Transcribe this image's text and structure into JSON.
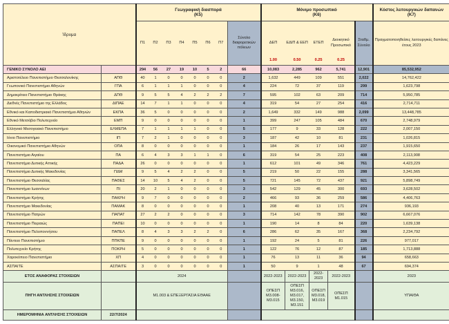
{
  "header": {
    "institution": "Ίδρυμα",
    "geo_title": "Γεωγραφική διασπορά",
    "geo_code": "(Κ5)",
    "staff_title": "Μόνιμο προσωπικό",
    "staff_code": "(Κ6)",
    "cost_title": "Κόστος λειτουργικών δαπανών",
    "cost_code": "(Κ7)",
    "cols_p": [
      "Π1",
      "Π2",
      "Π3",
      "Π4",
      "Π5",
      "Π6",
      "Π7"
    ],
    "total_cities": "Σύνολο διαφορετικών πόλεων",
    "dep": "ΔΕΠ",
    "edip": "ΕΔΙΠ & ΕΕΠ",
    "etep": "ΕΤΕΠ",
    "admin": "Διοικητικό Προσωπικό",
    "weighted": "Σταθμ. Σύνολο",
    "cost_col": "Πραγματοποιηθείσες λειτουργικές δαπάνες έτους 2023",
    "weights": [
      "1.00",
      "0.50",
      "0.25",
      "0.25"
    ]
  },
  "total": {
    "label": "ΓΕΝΙΚΟ ΣΥΝΟΛΟ ΑΕΙ",
    "p": [
      "294",
      "56",
      "27",
      "19",
      "10",
      "5",
      "2"
    ],
    "cities": "66",
    "staff": [
      "10,083",
      "2,285",
      "962",
      "5,741"
    ],
    "weighted": "12,901",
    "cost": "85,532,952"
  },
  "rows": [
    {
      "name": "Αριστοτέλειο Πανεπιστήμιο Θεσσαλονίκης",
      "abbr": "ΑΠΘ",
      "p": [
        "40",
        "1",
        "0",
        "0",
        "0",
        "0",
        "0"
      ],
      "cities": "2",
      "staff": [
        "1,632",
        "449",
        "109",
        "551"
      ],
      "weighted": "2,022",
      "cost": "14,762,422"
    },
    {
      "name": "Γεωπονικό Πανεπιστήμιο Αθηνών",
      "abbr": "ΓΠΑ",
      "p": [
        "6",
        "1",
        "1",
        "1",
        "0",
        "0",
        "0"
      ],
      "cities": "4",
      "staff": [
        "224",
        "72",
        "37",
        "119"
      ],
      "weighted": "299",
      "cost": "1,623,798"
    },
    {
      "name": "Δημοκρίτειο Πανεπιστήμιο Θράκης",
      "abbr": "ΔΠΘ",
      "p": [
        "9",
        "5",
        "5",
        "4",
        "2",
        "2",
        "2"
      ],
      "cities": "7",
      "staff": [
        "595",
        "102",
        "63",
        "209"
      ],
      "weighted": "714",
      "cost": "5,950,785"
    },
    {
      "name": "Διεθνές Πανεπιστήμιο της Ελλάδος",
      "abbr": "ΔΙΠΑΕ",
      "p": [
        "14",
        "7",
        "1",
        "1",
        "0",
        "0",
        "0"
      ],
      "cities": "4",
      "staff": [
        "319",
        "54",
        "27",
        "254"
      ],
      "weighted": "416",
      "cost": "2,714,711"
    },
    {
      "name": "Εθνικό και Καποδιστριακό Πανεπιστήμιο Αθηνών",
      "abbr": "ΕΚΠΑ",
      "p": [
        "36",
        "5",
        "0",
        "0",
        "0",
        "0",
        "0"
      ],
      "cities": "2",
      "staff": [
        "1,649",
        "332",
        "149",
        "988"
      ],
      "weighted": "2,099",
      "cost": "13,448,785"
    },
    {
      "name": "Εθνικό Μετσόβιο Πολυτεχνείο",
      "abbr": "ΕΜΠ",
      "p": [
        "9",
        "0",
        "0",
        "0",
        "0",
        "0",
        "0"
      ],
      "cities": "1",
      "staff": [
        "399",
        "247",
        "105",
        "484"
      ],
      "weighted": "670",
      "cost": "2,748,979"
    },
    {
      "name": "Ελληνικό Μεσογειακό Πανεπιστήμιο",
      "abbr": "ΕΛΜΕΠΑ",
      "p": [
        "7",
        "1",
        "1",
        "1",
        "1",
        "0",
        "0"
      ],
      "cities": "5",
      "staff": [
        "177",
        "9",
        "33",
        "128"
      ],
      "weighted": "222",
      "cost": "2,007,150"
    },
    {
      "name": "Ιόνιο Πανεπιστήμιο",
      "abbr": "ΙΠ",
      "p": [
        "7",
        "2",
        "1",
        "0",
        "0",
        "0",
        "0"
      ],
      "cities": "3",
      "staff": [
        "187",
        "42",
        "10",
        "81"
      ],
      "weighted": "231",
      "cost": "1,026,815"
    },
    {
      "name": "Οικονομικό Πανεπιστήμιο Αθηνών",
      "abbr": "ΟΠΑ",
      "p": [
        "8",
        "0",
        "0",
        "0",
        "0",
        "0",
        "0"
      ],
      "cities": "1",
      "staff": [
        "184",
        "26",
        "17",
        "143"
      ],
      "weighted": "237",
      "cost": "1,915,650"
    },
    {
      "name": "Πανεπιστήμιο Αιγαίου",
      "abbr": "ΠΑ",
      "p": [
        "6",
        "4",
        "3",
        "3",
        "1",
        "1",
        "0"
      ],
      "cities": "6",
      "staff": [
        "319",
        "54",
        "25",
        "223"
      ],
      "weighted": "408",
      "cost": "2,113,908"
    },
    {
      "name": "Πανεπιστήμιο Δυτικής Αττικής",
      "abbr": "ΠΑΔΑ",
      "p": [
        "26",
        "0",
        "0",
        "0",
        "0",
        "0",
        "0"
      ],
      "cities": "1",
      "staff": [
        "612",
        "101",
        "49",
        "346"
      ],
      "weighted": "761",
      "cost": "4,423,229"
    },
    {
      "name": "Πανεπιστήμιο Δυτικής Μακεδονίας",
      "abbr": "ΠΔΜ",
      "p": [
        "9",
        "5",
        "4",
        "2",
        "2",
        "0",
        "0"
      ],
      "cities": "5",
      "staff": [
        "219",
        "50",
        "22",
        "155"
      ],
      "weighted": "288",
      "cost": "3,341,565"
    },
    {
      "name": "Πανεπιστήμιο Θεσσαλίας",
      "abbr": "ΠΑΘΕΣ",
      "p": [
        "14",
        "10",
        "5",
        "4",
        "2",
        "0",
        "0"
      ],
      "cities": "5",
      "staff": [
        "721",
        "145",
        "72",
        "437"
      ],
      "weighted": "921",
      "cost": "5,898,749"
    },
    {
      "name": "Πανεπιστήμιο Ιωαννίνων",
      "abbr": "ΠΙ",
      "p": [
        "20",
        "2",
        "1",
        "0",
        "0",
        "0",
        "0"
      ],
      "cities": "3",
      "staff": [
        "542",
        "129",
        "45",
        "300"
      ],
      "weighted": "693",
      "cost": "3,628,502"
    },
    {
      "name": "Πανεπιστήμιο Κρήτης",
      "abbr": "ΠΑΚΡΗ",
      "p": [
        "9",
        "7",
        "0",
        "0",
        "0",
        "0",
        "0"
      ],
      "cities": "2",
      "staff": [
        "466",
        "93",
        "36",
        "259"
      ],
      "weighted": "586",
      "cost": "4,406,763"
    },
    {
      "name": "Πανεπιστήμιο Μακεδονίας",
      "abbr": "ΠΑΜΑΚ",
      "p": [
        "8",
        "0",
        "0",
        "0",
        "0",
        "0",
        "0"
      ],
      "cities": "1",
      "staff": [
        "208",
        "40",
        "13",
        "171"
      ],
      "weighted": "274",
      "cost": "936,193"
    },
    {
      "name": "Πανεπιστήμιο Πατρών",
      "abbr": "ΠΑΠΑΤ",
      "p": [
        "27",
        "2",
        "2",
        "0",
        "0",
        "0",
        "0"
      ],
      "cities": "3",
      "staff": [
        "714",
        "142",
        "78",
        "390"
      ],
      "weighted": "902",
      "cost": "6,667,076"
    },
    {
      "name": "Πανεπιστήμιο Πειραιώς",
      "abbr": "ΠΑΠΕΙ",
      "p": [
        "10",
        "0",
        "0",
        "0",
        "0",
        "0",
        "0"
      ],
      "cities": "1",
      "staff": [
        "190",
        "14",
        "8",
        "84"
      ],
      "weighted": "220",
      "cost": "1,639,138"
    },
    {
      "name": "Πανεπιστήμιο Πελοποννήσου",
      "abbr": "ΠΑΠΕΛ",
      "p": [
        "8",
        "4",
        "3",
        "3",
        "2",
        "2",
        "0"
      ],
      "cities": "6",
      "staff": [
        "286",
        "62",
        "35",
        "167"
      ],
      "weighted": "368",
      "cost": "2,234,792"
    },
    {
      "name": "Πάντειο Πανεπιστήμιο",
      "abbr": "ΠΠΚΠΕ",
      "p": [
        "9",
        "0",
        "0",
        "0",
        "0",
        "0",
        "0"
      ],
      "cities": "1",
      "staff": [
        "192",
        "24",
        "5",
        "81"
      ],
      "weighted": "226",
      "cost": "977,017"
    },
    {
      "name": "Πολυτεχνείο Κρήτης",
      "abbr": "ΠΟΚΡΗ",
      "p": [
        "5",
        "0",
        "0",
        "0",
        "0",
        "0",
        "0"
      ],
      "cities": "1",
      "staff": [
        "122",
        "76",
        "12",
        "87"
      ],
      "weighted": "185",
      "cost": "1,713,888"
    },
    {
      "name": "Χαροκόπειο Πανεπιστήμιο",
      "abbr": "ΧΠ",
      "p": [
        "4",
        "0",
        "0",
        "0",
        "0",
        "0",
        "0"
      ],
      "cities": "1",
      "staff": [
        "76",
        "13",
        "11",
        "36"
      ],
      "weighted": "94",
      "cost": "658,663"
    },
    {
      "name": "ΑΣΠΑΙΤΕ",
      "abbr": "ΑΣΠΑΙΤΕ",
      "p": [
        "3",
        "0",
        "0",
        "0",
        "0",
        "0",
        "0"
      ],
      "cities": "1",
      "staff": [
        "50",
        "9",
        "1",
        "48"
      ],
      "weighted": "67",
      "cost": "694,374"
    }
  ],
  "footer": {
    "year_label": "ΕΤΟΣ ΑΝΑΦΟΡΑΣ ΣΤΟΙΧΕΙΩΝ",
    "year_geo": "2024",
    "year_staff": [
      "2022-2023",
      "2022-2023",
      "2022-2023",
      "2022-2023"
    ],
    "year_cost": "2023",
    "source_label": "ΠΗΓΗ ΑΝΤΛΗΣΗΣ ΣΤΟΙΧΕΙΩΝ",
    "source_geo": "Μ1.003 & ΕΠΕΞΕΡΓΑΣΙΑ ΕΘΑΑΕ",
    "source_staff": [
      "ΟΠΕΣΠ Μ3.008-Μ3.015",
      "ΟΠΕΣΠ Μ3.016, Μ3.017, Μ3.150, Μ3.151",
      "ΟΠΕΣΠ Μ3.018, Μ3.019",
      "ΟΠΕΣΠ Μ1.015"
    ],
    "source_cost": "ΥΠΑΙΘΑ",
    "date_label": "ΗΜΕΡΟΜΗΝΙΑ ΑΝΤΛΗΣΗΣ ΣΤΟΙΧΕΙΩΝ",
    "date_value": "22/7/2024"
  }
}
